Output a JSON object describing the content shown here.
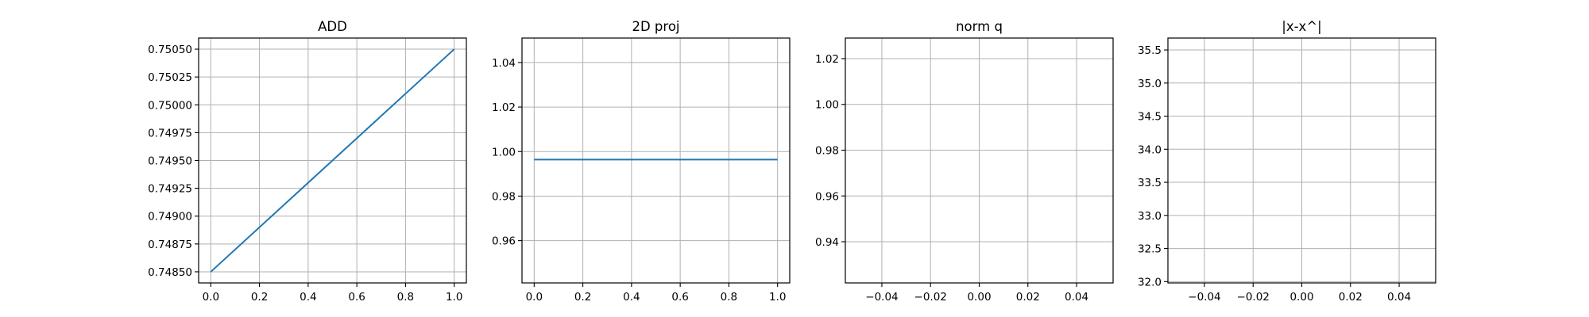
{
  "style": {
    "line_color": "#1f77b4",
    "grid_color": "#b0b0b0"
  },
  "chart_data": [
    {
      "type": "line",
      "title": "ADD",
      "xlabel": "",
      "ylabel": "",
      "grid": true,
      "xlim": [
        -0.05,
        1.05
      ],
      "ylim": [
        0.7484,
        0.7506
      ],
      "xticks": [
        0.0,
        0.2,
        0.4,
        0.6,
        0.8,
        1.0
      ],
      "xtick_labels": [
        "0.0",
        "0.2",
        "0.4",
        "0.6",
        "0.8",
        "1.0"
      ],
      "yticks": [
        0.7485,
        0.74875,
        0.749,
        0.74925,
        0.7495,
        0.74975,
        0.75,
        0.75025,
        0.7505
      ],
      "ytick_labels": [
        "0.74850",
        "0.74875",
        "0.74900",
        "0.74925",
        "0.74950",
        "0.74975",
        "0.75000",
        "0.75025",
        "0.75050"
      ],
      "series": [
        {
          "x": [
            0,
            1
          ],
          "y": [
            0.7485,
            0.7505
          ]
        }
      ]
    },
    {
      "type": "line",
      "title": "2D proj",
      "xlabel": "",
      "ylabel": "",
      "grid": true,
      "xlim": [
        -0.05,
        1.05
      ],
      "ylim": [
        0.941,
        1.051
      ],
      "xticks": [
        0.0,
        0.2,
        0.4,
        0.6,
        0.8,
        1.0
      ],
      "xtick_labels": [
        "0.0",
        "0.2",
        "0.4",
        "0.6",
        "0.8",
        "1.0"
      ],
      "yticks": [
        0.96,
        0.98,
        1.0,
        1.02,
        1.04
      ],
      "ytick_labels": [
        "0.96",
        "0.98",
        "1.00",
        "1.02",
        "1.04"
      ],
      "series": [
        {
          "x": [
            0,
            1
          ],
          "y": [
            0.9964,
            0.9964
          ]
        }
      ]
    },
    {
      "type": "line",
      "title": "norm q",
      "xlabel": "",
      "ylabel": "",
      "grid": true,
      "xlim": [
        -0.055,
        0.055
      ],
      "ylim": [
        0.922,
        1.029
      ],
      "xticks": [
        -0.04,
        -0.02,
        0.0,
        0.02,
        0.04
      ],
      "xtick_labels": [
        "−0.04",
        "−0.02",
        "0.00",
        "0.02",
        "0.04"
      ],
      "yticks": [
        0.94,
        0.96,
        0.98,
        1.0,
        1.02
      ],
      "ytick_labels": [
        "0.94",
        "0.96",
        "0.98",
        "1.00",
        "1.02"
      ],
      "series": []
    },
    {
      "type": "line",
      "title": "|x-x^|",
      "xlabel": "",
      "ylabel": "",
      "grid": true,
      "xlim": [
        -0.055,
        0.055
      ],
      "ylim": [
        31.98,
        35.68
      ],
      "xticks": [
        -0.04,
        -0.02,
        0.0,
        0.02,
        0.04
      ],
      "xtick_labels": [
        "−0.04",
        "−0.02",
        "0.00",
        "0.02",
        "0.04"
      ],
      "yticks": [
        32.0,
        32.5,
        33.0,
        33.5,
        34.0,
        34.5,
        35.0,
        35.5
      ],
      "ytick_labels": [
        "32.0",
        "32.5",
        "33.0",
        "33.5",
        "34.0",
        "34.5",
        "35.0",
        "35.5"
      ],
      "series": []
    }
  ]
}
